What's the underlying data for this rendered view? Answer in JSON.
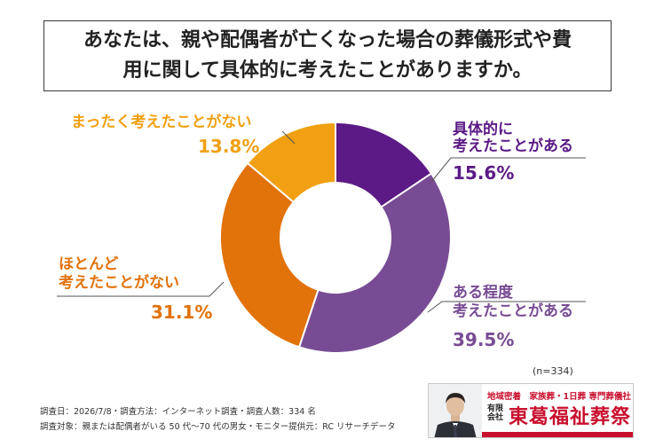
{
  "question": "あなたは、親や配偶者が亡くなった場合の葬儀形式や費用に関して具体的に考えたことがありますか。",
  "chart_data": {
    "type": "pie",
    "donut": true,
    "categories": [
      "具体的に考えたことがある",
      "ある程度考えたことがある",
      "ほとんど考えたことがない",
      "まったく考えたことがない"
    ],
    "values": [
      15.6,
      39.5,
      31.1,
      13.8
    ],
    "unit": "%",
    "colors": [
      "#5b1a85",
      "#784c94",
      "#e2720a",
      "#f0a012"
    ]
  },
  "labels": {
    "slice1_line1": "具体的に",
    "slice1_line2": "考えたことがある",
    "slice1_value": "15.6%",
    "slice2_line1": "ある程度",
    "slice2_line2": "考えたことがある",
    "slice2_value": "39.5%",
    "slice3_line1": "ほとんど",
    "slice3_line2": "考えたことがない",
    "slice3_value": "31.1%",
    "slice4_line1": "まったく考えたことがない",
    "slice4_value": "13.8%"
  },
  "sample_size": "(n=334)",
  "footnotes": {
    "line1": "調査日：2026/7/8・調査方法：インターネット調査・調査人数：334 名",
    "line2": "調査対象：親または配偶者がいる 50 代〜70 代の男女・モニター提供元：RC リサーチデータ"
  },
  "logo": {
    "tagline": "地域密着　家族葬・1日葬 専門葬儀社",
    "company_type": "有限会社",
    "name": "東葛福祉葬祭"
  }
}
